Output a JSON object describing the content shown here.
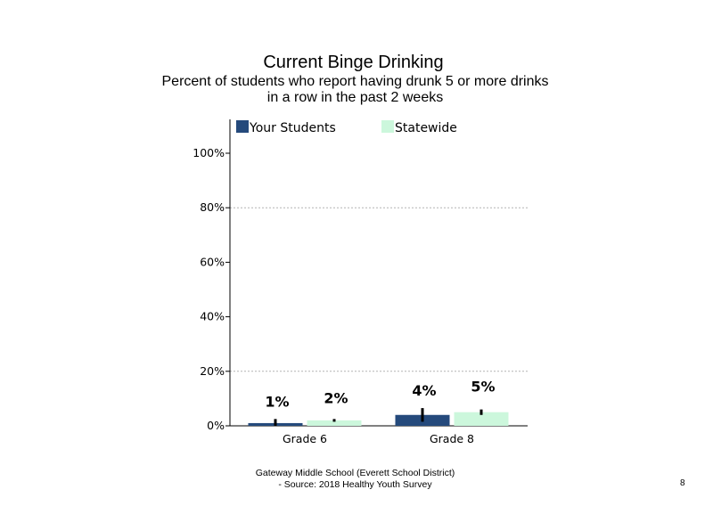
{
  "page": {
    "title": "Current  Binge Drinking",
    "subtitle_line1": "Percent of students  who report having drunk 5 or more drinks",
    "subtitle_line2": "in a row in the past 2 weeks",
    "footer_line1": "Gateway Middle  School  (Everett School District)",
    "footer_line2": "- Source: 2018 Healthy  Youth Survey",
    "page_number": "8"
  },
  "chart_data": {
    "type": "bar",
    "categories": [
      "Grade 6",
      "Grade 8"
    ],
    "series": [
      {
        "name": "Your Students",
        "values": [
          1,
          4
        ],
        "labels": [
          "1%",
          "4%"
        ],
        "color": "#254a7c",
        "error": [
          1.5,
          2.5
        ]
      },
      {
        "name": "Statewide",
        "values": [
          2,
          5
        ],
        "labels": [
          "2%",
          "5%"
        ],
        "color": "#ccf7dc",
        "error": [
          0.5,
          1
        ]
      }
    ],
    "ylim": [
      0,
      100
    ],
    "yticks": [
      0,
      20,
      40,
      60,
      80,
      100
    ],
    "ytick_labels": [
      "0%",
      "20%",
      "40%",
      "60%",
      "80%",
      "100%"
    ],
    "gridlines": [
      20,
      80
    ],
    "legend_position": "top",
    "xlabel": "",
    "ylabel": ""
  }
}
